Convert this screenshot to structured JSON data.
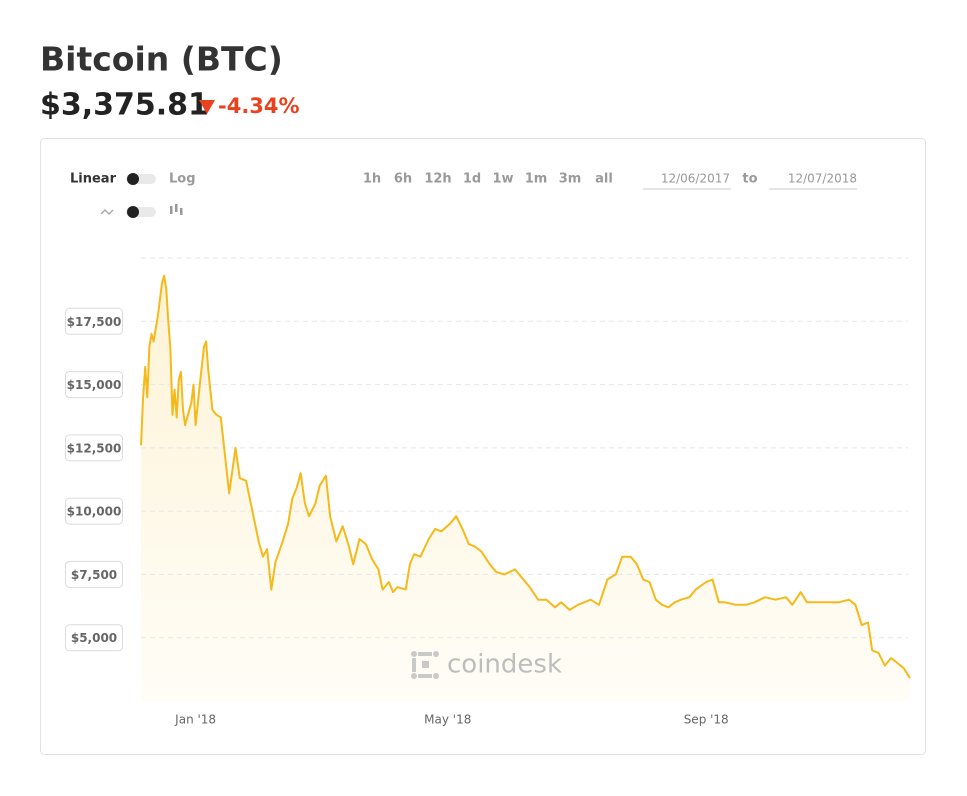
{
  "header": {
    "title": "Bitcoin (BTC)",
    "price": "$3,375.81",
    "change": "-4.34%"
  },
  "controls": {
    "scale_linear": "Linear",
    "scale_log": "Log",
    "ranges": [
      "1h",
      "6h",
      "12h",
      "1d",
      "1w",
      "1m",
      "3m",
      "all"
    ],
    "date_from": "12/06/2017",
    "date_sep": "to",
    "date_to": "12/07/2018"
  },
  "watermark": "coindesk",
  "chart_data": {
    "type": "line",
    "color": "#f6b91a",
    "log": false,
    "grid": true,
    "x": [
      0,
      1,
      2,
      3,
      4,
      5,
      6,
      8,
      10,
      11,
      12,
      13,
      14,
      15,
      16,
      17,
      18,
      19,
      20,
      21,
      22,
      24,
      25,
      26,
      28,
      30,
      31,
      32,
      34,
      36,
      38,
      40,
      42,
      45,
      47,
      50,
      53,
      56,
      58,
      60,
      62,
      64,
      67,
      70,
      72,
      74,
      76,
      78,
      80,
      83,
      85,
      88,
      90,
      93,
      96,
      99,
      101,
      104,
      107,
      110,
      113,
      115,
      118,
      120,
      122,
      126,
      128,
      130,
      133,
      137,
      140,
      143,
      147,
      150,
      153,
      156,
      159,
      162,
      166,
      169,
      173,
      178,
      181,
      185,
      189,
      193,
      197,
      200,
      204,
      208,
      211,
      214,
      218,
      222,
      226,
      229,
      233,
      236,
      239,
      242,
      245,
      248,
      251,
      254,
      257,
      261,
      264,
      269,
      272,
      275,
      278,
      283,
      288,
      292,
      297,
      302,
      307,
      310,
      314,
      317,
      322,
      327,
      332,
      337,
      340,
      343,
      346,
      348,
      351,
      354,
      357,
      360,
      363,
      366
    ],
    "values": [
      12600,
      14500,
      15700,
      14500,
      16500,
      17000,
      16700,
      17700,
      19000,
      19300,
      18800,
      17500,
      16400,
      13800,
      14800,
      13700,
      15200,
      15500,
      14000,
      13400,
      13700,
      14300,
      15000,
      13400,
      15000,
      16500,
      16700,
      15600,
      14000,
      13800,
      13700,
      12200,
      10700,
      12500,
      11300,
      11200,
      10000,
      8800,
      8200,
      8500,
      6900,
      8000,
      8700,
      9500,
      10500,
      10900,
      11500,
      10300,
      9800,
      10300,
      11000,
      11400,
      9800,
      8800,
      9400,
      8600,
      7900,
      8900,
      8700,
      8100,
      7700,
      6900,
      7200,
      6800,
      7000,
      6900,
      7900,
      8300,
      8200,
      8900,
      9300,
      9200,
      9500,
      9800,
      9300,
      8700,
      8600,
      8400,
      7900,
      7600,
      7500,
      7700,
      7400,
      7000,
      6500,
      6500,
      6200,
      6400,
      6100,
      6300,
      6400,
      6500,
      6300,
      7300,
      7500,
      8200,
      8200,
      7900,
      7300,
      7200,
      6500,
      6300,
      6200,
      6400,
      6500,
      6600,
      6900,
      7200,
      7300,
      6400,
      6400,
      6300,
      6300,
      6400,
      6600,
      6500,
      6600,
      6300,
      6800,
      6400,
      6400,
      6400,
      6400,
      6500,
      6300,
      5500,
      5600,
      4500,
      4400,
      3900,
      4200,
      4000,
      3800,
      3400
    ],
    "xlim": [
      0,
      366
    ],
    "xticks": [
      {
        "value": 26,
        "label": "Jan '18"
      },
      {
        "value": 146,
        "label": "May '18"
      },
      {
        "value": 269,
        "label": "Sep '18"
      }
    ],
    "ylim": [
      2500,
      20000
    ],
    "yticks": [
      {
        "value": 5000,
        "label": "$5,000"
      },
      {
        "value": 7500,
        "label": "$7,500"
      },
      {
        "value": 10000,
        "label": "$10,000"
      },
      {
        "value": 12500,
        "label": "$12,500"
      },
      {
        "value": 15000,
        "label": "$15,000"
      },
      {
        "value": 17500,
        "label": "$17,500"
      }
    ]
  }
}
